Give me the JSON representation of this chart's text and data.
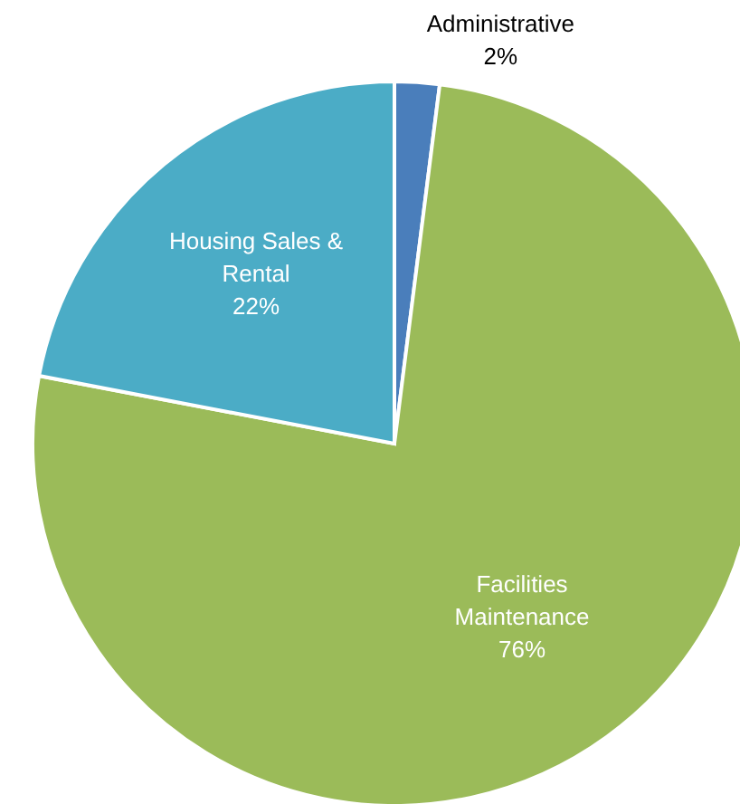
{
  "chart_data": {
    "type": "pie",
    "categories": [
      "Administrative",
      "Facilities Maintenance",
      "Housing Sales & Rental"
    ],
    "values": [
      2,
      76,
      22
    ],
    "colors": [
      "#4a7ebb",
      "#9bbb59",
      "#4bacc6"
    ],
    "value_labels": [
      "2%",
      "76%",
      "22%"
    ]
  }
}
